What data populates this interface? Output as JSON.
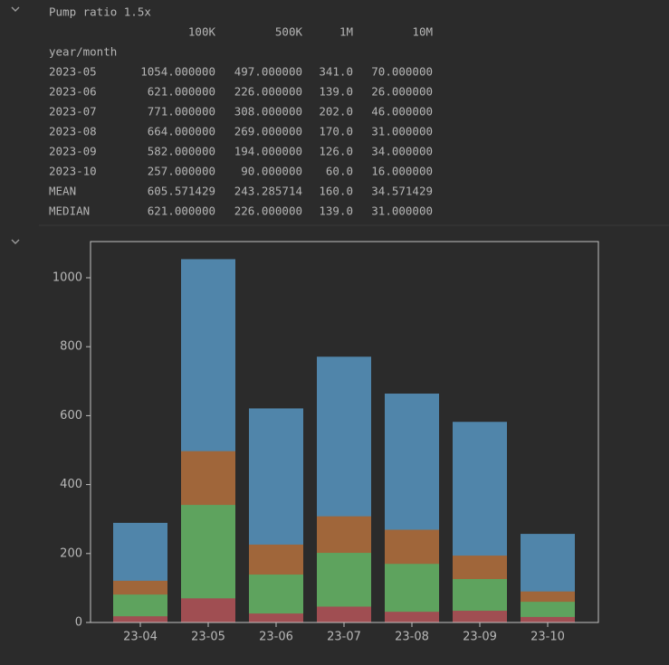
{
  "title": "Pump ratio 1.5x",
  "table": {
    "columns": [
      "100K",
      "500K",
      "1M",
      "10M"
    ],
    "index_name": "year/month",
    "rows": [
      {
        "label": "2023-05",
        "cells": [
          "1054.000000",
          "497.000000",
          "341.0",
          "70.000000"
        ]
      },
      {
        "label": "2023-06",
        "cells": [
          "621.000000",
          "226.000000",
          "139.0",
          "26.000000"
        ]
      },
      {
        "label": "2023-07",
        "cells": [
          "771.000000",
          "308.000000",
          "202.0",
          "46.000000"
        ]
      },
      {
        "label": "2023-08",
        "cells": [
          "664.000000",
          "269.000000",
          "170.0",
          "31.000000"
        ]
      },
      {
        "label": "2023-09",
        "cells": [
          "582.000000",
          "194.000000",
          "126.0",
          "34.000000"
        ]
      },
      {
        "label": "2023-10",
        "cells": [
          "257.000000",
          "90.000000",
          "60.0",
          "16.000000"
        ]
      },
      {
        "label": "MEAN",
        "cells": [
          "605.571429",
          "243.285714",
          "160.0",
          "34.571429"
        ]
      },
      {
        "label": "MEDIAN",
        "cells": [
          "621.000000",
          "226.000000",
          "139.0",
          "31.000000"
        ]
      }
    ]
  },
  "chart_data": {
    "type": "bar",
    "categories": [
      "23-04",
      "23-05",
      "23-06",
      "23-07",
      "23-08",
      "23-09",
      "23-10"
    ],
    "series": [
      {
        "color": "#5085aa",
        "values": [
          289,
          1054,
          621,
          771,
          664,
          582,
          257
        ]
      },
      {
        "color": "#a0663a",
        "values": [
          121,
          497,
          226,
          308,
          269,
          194,
          90
        ]
      },
      {
        "color": "#5ea35e",
        "values": [
          81,
          341,
          139,
          202,
          170,
          126,
          60
        ]
      },
      {
        "color": "#a04e52",
        "values": [
          18,
          70,
          26,
          46,
          31,
          34,
          16
        ]
      }
    ],
    "ylim": [
      0,
      1105
    ],
    "yticks": [
      0,
      200,
      400,
      600,
      800,
      1000
    ]
  }
}
